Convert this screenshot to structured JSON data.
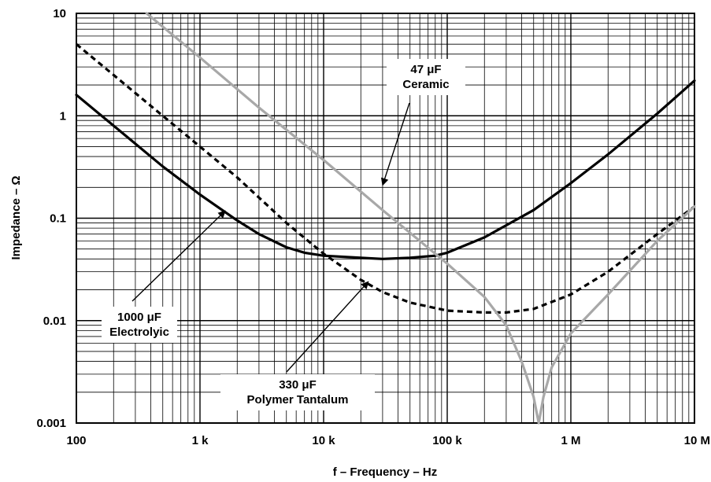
{
  "chart_data": {
    "type": "line",
    "xlabel": "f – Frequency – Hz",
    "ylabel": "Impedance – Ω",
    "x_scale": "log",
    "y_scale": "log",
    "xlim": [
      100,
      10000000
    ],
    "ylim": [
      0.001,
      10
    ],
    "grid": true,
    "x_ticks": [
      {
        "value": 100,
        "label": "100"
      },
      {
        "value": 1000,
        "label": "1 k"
      },
      {
        "value": 10000,
        "label": "10 k"
      },
      {
        "value": 100000,
        "label": "100 k"
      },
      {
        "value": 1000000,
        "label": "1 M"
      },
      {
        "value": 10000000,
        "label": "10 M"
      }
    ],
    "y_ticks": [
      {
        "value": 0.001,
        "label": "0.001"
      },
      {
        "value": 0.01,
        "label": "0.01"
      },
      {
        "value": 0.1,
        "label": "0.1"
      },
      {
        "value": 1,
        "label": "1"
      },
      {
        "value": 10,
        "label": "10"
      }
    ],
    "series": [
      {
        "color": "#000000",
        "style": "solid",
        "x": [
          100,
          200,
          500,
          1000,
          2000,
          3000,
          5000,
          7000,
          10000,
          20000,
          30000,
          50000,
          80000,
          100000,
          200000,
          500000,
          1000000,
          2000000,
          5000000,
          10000000
        ],
        "y": [
          1.6,
          0.8,
          0.32,
          0.17,
          0.095,
          0.07,
          0.052,
          0.046,
          0.043,
          0.041,
          0.04,
          0.041,
          0.043,
          0.046,
          0.065,
          0.12,
          0.22,
          0.42,
          1.05,
          2.2
        ]
      },
      {
        "color": "#000000",
        "style": "dashed",
        "x": [
          100,
          200,
          500,
          1000,
          2000,
          5000,
          10000,
          20000,
          30000,
          50000,
          100000,
          200000,
          300000,
          500000,
          1000000,
          2000000,
          5000000,
          10000000
        ],
        "y": [
          5,
          2.5,
          1.0,
          0.5,
          0.25,
          0.09,
          0.045,
          0.025,
          0.019,
          0.015,
          0.0125,
          0.012,
          0.012,
          0.013,
          0.018,
          0.03,
          0.07,
          0.13
        ]
      },
      {
        "color": "#a8a8a8",
        "style": "solid",
        "x": [
          370,
          1000,
          3000,
          10000,
          30000,
          100000,
          200000,
          300000,
          400000,
          500000,
          550000,
          600000,
          700000,
          1000000,
          2000000,
          5000000,
          10000000
        ],
        "y": [
          10,
          3.7,
          1.2,
          0.37,
          0.12,
          0.036,
          0.017,
          0.009,
          0.004,
          0.0018,
          0.001,
          0.0018,
          0.0035,
          0.0075,
          0.018,
          0.06,
          0.13
        ]
      }
    ],
    "annotations": [
      {
        "lines": [
          "47 μF",
          "Ceramic"
        ],
        "target": [
          30000,
          0.21
        ]
      },
      {
        "lines": [
          "1000 μF",
          "Electrolyic"
        ],
        "target": [
          1600,
          0.118
        ]
      },
      {
        "lines": [
          "330 μF",
          "Polymer Tantalum"
        ],
        "target": [
          23000,
          0.024
        ]
      }
    ]
  }
}
